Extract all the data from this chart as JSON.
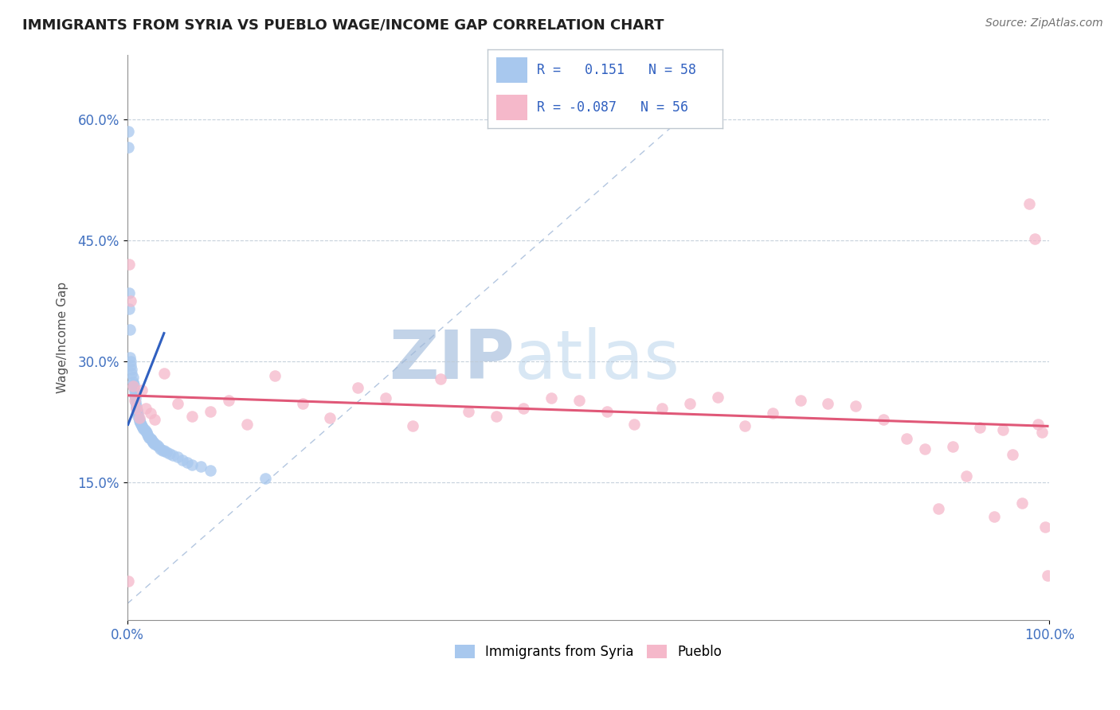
{
  "title": "IMMIGRANTS FROM SYRIA VS PUEBLO WAGE/INCOME GAP CORRELATION CHART",
  "source_text": "Source: ZipAtlas.com",
  "ylabel": "Wage/Income Gap",
  "xlim": [
    0,
    1.0
  ],
  "ylim": [
    -0.02,
    0.68
  ],
  "yticks": [
    0.15,
    0.3,
    0.45,
    0.6
  ],
  "ytick_labels": [
    "15.0%",
    "30.0%",
    "45.0%",
    "60.0%"
  ],
  "xticks": [
    0.0,
    1.0
  ],
  "xtick_labels": [
    "0.0%",
    "100.0%"
  ],
  "legend_r_blue": " 0.151",
  "legend_n_blue": "58",
  "legend_r_pink": "-0.087",
  "legend_n_pink": "56",
  "blue_color": "#a8c8ee",
  "pink_color": "#f5b8ca",
  "blue_line_color": "#3060c0",
  "pink_line_color": "#e05878",
  "watermark_color": "#c5d8ef",
  "blue_scatter_x": [
    0.001,
    0.001,
    0.002,
    0.002,
    0.003,
    0.003,
    0.004,
    0.004,
    0.005,
    0.005,
    0.006,
    0.006,
    0.007,
    0.007,
    0.008,
    0.008,
    0.009,
    0.009,
    0.01,
    0.01,
    0.011,
    0.011,
    0.012,
    0.012,
    0.013,
    0.013,
    0.014,
    0.015,
    0.016,
    0.017,
    0.018,
    0.019,
    0.02,
    0.021,
    0.022,
    0.023,
    0.024,
    0.025,
    0.026,
    0.027,
    0.028,
    0.029,
    0.03,
    0.032,
    0.034,
    0.036,
    0.038,
    0.04,
    0.043,
    0.046,
    0.05,
    0.055,
    0.06,
    0.065,
    0.07,
    0.08,
    0.09,
    0.15
  ],
  "blue_scatter_y": [
    0.585,
    0.565,
    0.385,
    0.365,
    0.34,
    0.305,
    0.3,
    0.295,
    0.29,
    0.285,
    0.28,
    0.275,
    0.272,
    0.268,
    0.263,
    0.258,
    0.255,
    0.25,
    0.245,
    0.242,
    0.24,
    0.238,
    0.235,
    0.232,
    0.228,
    0.226,
    0.224,
    0.222,
    0.22,
    0.218,
    0.216,
    0.215,
    0.213,
    0.212,
    0.21,
    0.208,
    0.206,
    0.205,
    0.204,
    0.202,
    0.2,
    0.2,
    0.198,
    0.197,
    0.195,
    0.192,
    0.19,
    0.19,
    0.188,
    0.186,
    0.184,
    0.182,
    0.178,
    0.175,
    0.172,
    0.17,
    0.165,
    0.155
  ],
  "pink_scatter_x": [
    0.001,
    0.002,
    0.004,
    0.006,
    0.008,
    0.01,
    0.013,
    0.016,
    0.02,
    0.025,
    0.03,
    0.04,
    0.055,
    0.07,
    0.09,
    0.11,
    0.13,
    0.16,
    0.19,
    0.22,
    0.25,
    0.28,
    0.31,
    0.34,
    0.37,
    0.4,
    0.43,
    0.46,
    0.49,
    0.52,
    0.55,
    0.58,
    0.61,
    0.64,
    0.67,
    0.7,
    0.73,
    0.76,
    0.79,
    0.82,
    0.845,
    0.865,
    0.88,
    0.895,
    0.91,
    0.925,
    0.94,
    0.95,
    0.96,
    0.97,
    0.978,
    0.984,
    0.988,
    0.992,
    0.995,
    0.998
  ],
  "pink_scatter_y": [
    0.028,
    0.42,
    0.375,
    0.27,
    0.252,
    0.242,
    0.23,
    0.265,
    0.242,
    0.236,
    0.228,
    0.285,
    0.248,
    0.232,
    0.238,
    0.252,
    0.222,
    0.282,
    0.248,
    0.23,
    0.268,
    0.255,
    0.22,
    0.278,
    0.238,
    0.232,
    0.242,
    0.255,
    0.252,
    0.238,
    0.222,
    0.242,
    0.248,
    0.256,
    0.22,
    0.236,
    0.252,
    0.248,
    0.245,
    0.228,
    0.205,
    0.192,
    0.118,
    0.195,
    0.158,
    0.218,
    0.108,
    0.215,
    0.185,
    0.125,
    0.495,
    0.452,
    0.222,
    0.212,
    0.095,
    0.035
  ],
  "blue_trend_x": [
    0.001,
    0.04
  ],
  "blue_trend_y_start": 0.222,
  "blue_trend_y_end": 0.335,
  "pink_trend_x": [
    0.001,
    0.998
  ],
  "pink_trend_y_start": 0.258,
  "pink_trend_y_end": 0.22,
  "diag_line_x": [
    0.0,
    0.64
  ],
  "diag_line_y": [
    0.0,
    0.64
  ]
}
